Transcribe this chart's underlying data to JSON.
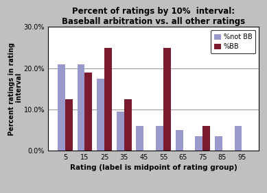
{
  "categories": [
    "5",
    "15",
    "25",
    "35",
    "45",
    "55",
    "65",
    "75",
    "85",
    "95"
  ],
  "not_bb": [
    21.0,
    21.0,
    17.5,
    9.5,
    6.0,
    6.0,
    5.0,
    3.5,
    3.5,
    6.0
  ],
  "bb": [
    12.5,
    19.0,
    25.0,
    12.5,
    0.0,
    25.0,
    0.0,
    6.0,
    0.0,
    0.0
  ],
  "not_bb_color": "#9999cc",
  "bb_color": "#7b1a2e",
  "title_line1": "Percent of ratings by 10%  interval:",
  "title_line2": "Baseball arbitration vs. all other ratings",
  "ylabel": "Percent ratings in rating\n interval",
  "xlabel": "Rating (label is midpoint of rating group)",
  "ylim_max": 30.0,
  "ytick_vals": [
    0.0,
    10.0,
    20.0,
    30.0
  ],
  "ytick_labels": [
    "0.0%",
    "10.0%",
    "20.0%",
    "30.0%"
  ],
  "legend_labels": [
    "%not BB",
    "%BB"
  ],
  "bar_width": 0.38,
  "background_color": "#c0c0c0",
  "title_fontsize": 8.5,
  "axis_label_fontsize": 7.5,
  "tick_fontsize": 7,
  "legend_fontsize": 7
}
